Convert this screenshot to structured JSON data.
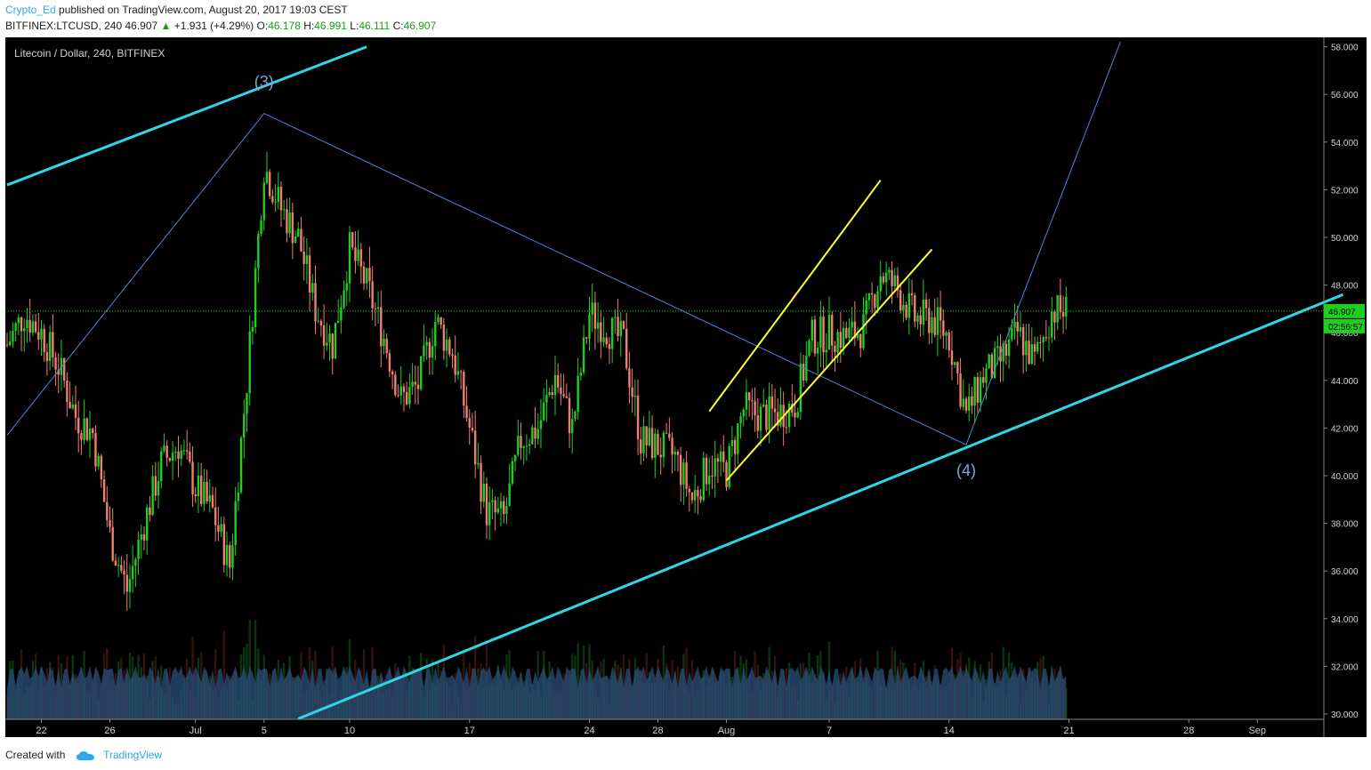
{
  "header": {
    "author": "Crypto_Ed",
    "published_text": "published on TradingView.com, August 20, 2017 19:03 CEST",
    "symbol": "BITFINEX:LTCUSD, 240",
    "last": "46.907",
    "change": "+1.931 (+4.29%)",
    "o_label": "O:",
    "o_value": "46.178",
    "h_label": "H:",
    "h_value": "46.991",
    "l_label": "L:",
    "l_value": "46.111",
    "c_label": "C:",
    "c_value": "46.907"
  },
  "footer": {
    "created_with": "Created with",
    "brand": "TradingView"
  },
  "colors": {
    "background": "#000000",
    "up": "#1ecf1e",
    "down": "#ef7f6e",
    "trend_cyan": "#2fd6e8",
    "channel_yellow": "#ffff33",
    "wave_blue": "#4a86d8",
    "volume": "#2b4f7a",
    "last_price": "#1ecf1e"
  },
  "chart_data": {
    "type": "candlestick",
    "title": "Litecoin / Dollar, 240, BITFINEX",
    "y_axis_labels": [
      "58.000",
      "56.000",
      "54.000",
      "52.000",
      "50.000",
      "48.000",
      "46.000",
      "44.000",
      "42.000",
      "40.000",
      "38.000",
      "36.000",
      "34.000",
      "32.000",
      "30.000"
    ],
    "ylim": [
      30,
      58
    ],
    "x_axis_labels": [
      "22",
      "26",
      "Jul",
      "5",
      "10",
      "17",
      "24",
      "28",
      "Aug",
      "7",
      "14",
      "21",
      "28",
      "Sep",
      "5"
    ],
    "last_price_label": "46.907",
    "countdown_label": "02:56:57",
    "wave_labels": [
      "(3)",
      "(4)"
    ],
    "wave_points": [
      {
        "date": "Jun 20",
        "price": 41.7
      },
      {
        "date": "Jul 5",
        "price": 55.2
      },
      {
        "date": "Aug 15",
        "price": 41.3
      },
      {
        "date": "Aug 18",
        "price": 47.0
      },
      {
        "date": "Aug 24",
        "price": 58.2
      }
    ],
    "trendlines": [
      {
        "name": "upper-cyan",
        "color": "cyan",
        "from": {
          "date": "Jun 20",
          "price": 52.2
        },
        "to": {
          "date": "Jul 11",
          "price": 58.0
        }
      },
      {
        "name": "lower-cyan",
        "color": "cyan",
        "from": {
          "date": "Jul 7",
          "price": 29.8
        },
        "to": {
          "date": "Sep 6",
          "price": 47.6
        }
      },
      {
        "name": "channel-upper",
        "color": "yellow",
        "from": {
          "date": "Jul 31",
          "price": 42.7
        },
        "to": {
          "date": "Aug 10",
          "price": 52.4
        }
      },
      {
        "name": "channel-lower",
        "color": "yellow",
        "from": {
          "date": "Aug 1",
          "price": 39.8
        },
        "to": {
          "date": "Aug 13",
          "price": 49.5
        }
      }
    ],
    "price_series": [
      [
        "Jun 20",
        45.5
      ],
      [
        "Jun 21",
        46.8
      ],
      [
        "Jun 22",
        46.0
      ],
      [
        "Jun 23",
        44.6
      ],
      [
        "Jun 24",
        42.5
      ],
      [
        "Jun 25",
        41.8
      ],
      [
        "Jun 26",
        37.5
      ],
      [
        "Jun 27",
        35.2
      ],
      [
        "Jun 28",
        38.0
      ],
      [
        "Jun 29",
        40.5
      ],
      [
        "Jun 30",
        41.3
      ],
      [
        "Jul 1",
        39.5
      ],
      [
        "Jul 2",
        38.5
      ],
      [
        "Jul 3",
        36.2
      ],
      [
        "Jul 4",
        44.0
      ],
      [
        "Jul 5",
        53.0
      ],
      [
        "Jul 6",
        51.2
      ],
      [
        "Jul 7",
        50.0
      ],
      [
        "Jul 8",
        47.0
      ],
      [
        "Jul 9",
        45.5
      ],
      [
        "Jul 10",
        49.5
      ],
      [
        "Jul 11",
        48.0
      ],
      [
        "Jul 12",
        45.8
      ],
      [
        "Jul 13",
        43.2
      ],
      [
        "Jul 14",
        43.8
      ],
      [
        "Jul 15",
        46.5
      ],
      [
        "Jul 16",
        45.2
      ],
      [
        "Jul 17",
        42.0
      ],
      [
        "Jul 18",
        38.5
      ],
      [
        "Jul 19",
        38.2
      ],
      [
        "Jul 20",
        41.5
      ],
      [
        "Jul 21",
        42.0
      ],
      [
        "Jul 22",
        44.2
      ],
      [
        "Jul 23",
        42.0
      ],
      [
        "Jul 24",
        46.8
      ],
      [
        "Jul 25",
        46.2
      ],
      [
        "Jul 26",
        45.6
      ],
      [
        "Jul 27",
        41.5
      ],
      [
        "Jul 28",
        41.2
      ],
      [
        "Jul 29",
        40.8
      ],
      [
        "Jul 30",
        39.0
      ],
      [
        "Jul 31",
        40.5
      ],
      [
        "Aug 1",
        40.2
      ],
      [
        "Aug 2",
        42.8
      ],
      [
        "Aug 3",
        42.5
      ],
      [
        "Aug 4",
        42.6
      ],
      [
        "Aug 5",
        43.0
      ],
      [
        "Aug 6",
        45.8
      ],
      [
        "Aug 7",
        46.0
      ],
      [
        "Aug 8",
        45.8
      ],
      [
        "Aug 9",
        46.2
      ],
      [
        "Aug 10",
        48.5
      ],
      [
        "Aug 11",
        47.8
      ],
      [
        "Aug 12",
        46.6
      ],
      [
        "Aug 13",
        46.6
      ],
      [
        "Aug 14",
        45.8
      ],
      [
        "Aug 15",
        42.5
      ],
      [
        "Aug 16",
        44.2
      ],
      [
        "Aug 17",
        44.8
      ],
      [
        "Aug 18",
        46.0
      ],
      [
        "Aug 19",
        44.8
      ],
      [
        "Aug 20",
        46.9
      ]
    ],
    "grid": false,
    "volume_shown": true
  }
}
